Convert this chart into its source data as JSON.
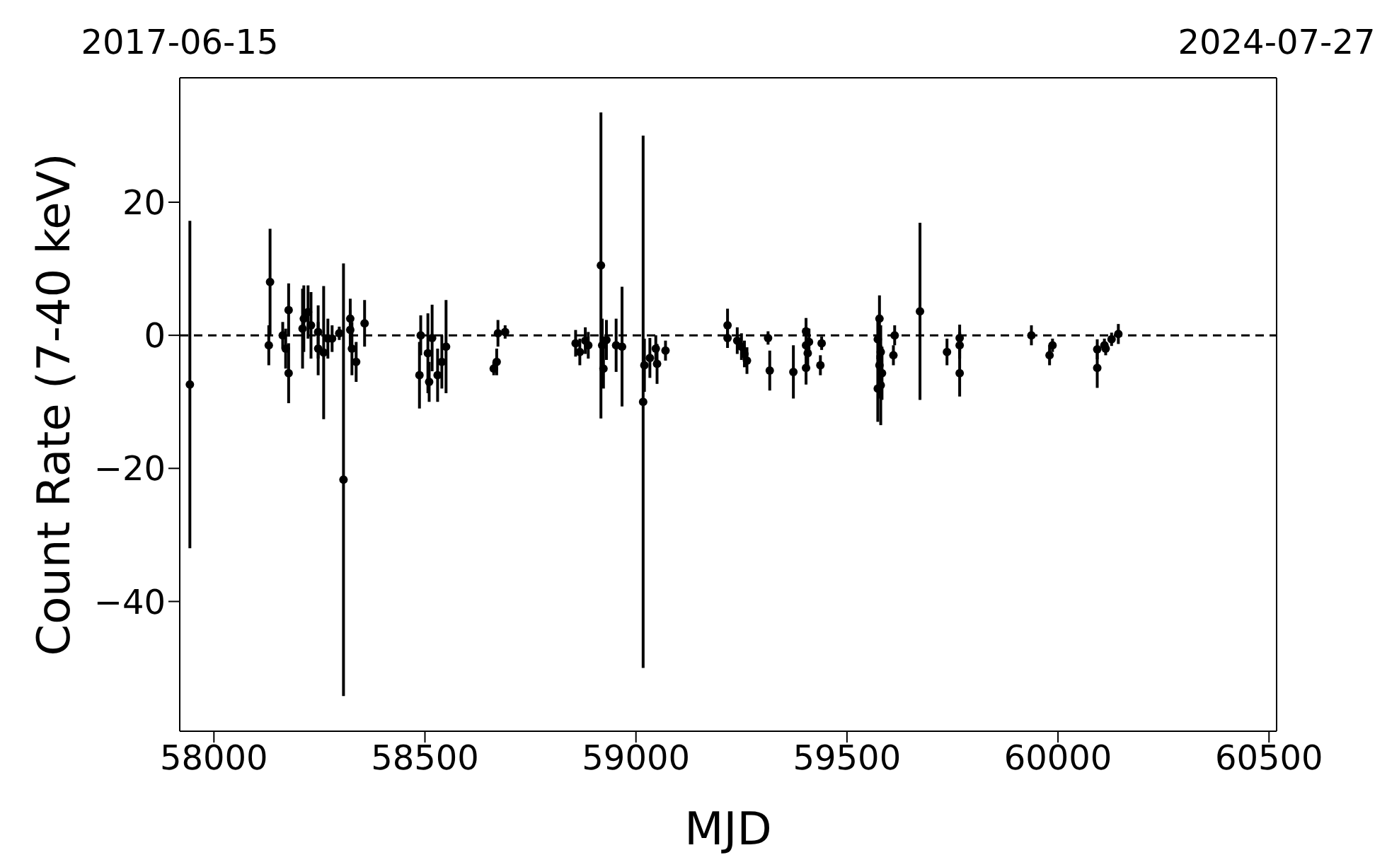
{
  "chart_data": {
    "type": "scatter",
    "xlabel": "MJD",
    "ylabel": "Count Rate (7-40 keV)",
    "xlim": [
      57919,
      60518
    ],
    "xticks": [
      58000,
      58500,
      59000,
      59500,
      60000,
      60500
    ],
    "x2lim": [
      "2017-06-15",
      "2024-07-27"
    ],
    "x2ticks": [
      "2017-06-15",
      "2024-07-27"
    ],
    "ylim": [
      -59.5,
      38.7
    ],
    "yticks": [
      {
        "value": -40,
        "label": "−40"
      },
      {
        "value": -20,
        "label": "−20"
      },
      0,
      20
    ],
    "marker": "circle",
    "ref_lines": [
      {
        "axis": "y",
        "value": 0,
        "line_style": "dashed",
        "color": "#000000"
      }
    ],
    "series": [
      {
        "color": "#000000",
        "x": [
          57943,
          58133,
          58130,
          58163,
          58170,
          58177,
          58177,
          58210,
          58213,
          58223,
          58230,
          58247,
          58247,
          58260,
          58270,
          58280,
          58297,
          58307,
          58323,
          58323,
          58327,
          58337,
          58357,
          58487,
          58490,
          58507,
          58510,
          58517,
          58530,
          58540,
          58550,
          58663,
          58670,
          58673,
          58690,
          58857,
          58867,
          58880,
          58887,
          58917,
          58920,
          58923,
          58930,
          58953,
          58967,
          59017,
          59020,
          59033,
          59047,
          59050,
          59070,
          59217,
          59217,
          59240,
          59250,
          59257,
          59263,
          59313,
          59317,
          59373,
          59403,
          59403,
          59407,
          59403,
          59410,
          59440,
          59437,
          59577,
          59573,
          59577,
          59573,
          59580,
          59580,
          59583,
          59613,
          59610,
          59673,
          59737,
          59767,
          59767,
          59767,
          59937,
          59980,
          59987,
          60093,
          60093,
          60110,
          60113,
          60127,
          60143
        ],
        "values": [
          -7.4,
          8.0,
          -1.5,
          0,
          -2,
          3.8,
          -5.7,
          1,
          2.5,
          3.5,
          1.5,
          0.5,
          -2,
          -2.6,
          -0.5,
          -0.5,
          0.3,
          -21.7,
          0.8,
          2.5,
          -2,
          -4,
          1.8,
          -6,
          0,
          -2.7,
          -7,
          -0.4,
          -6,
          -4,
          -1.7,
          -5,
          -4,
          0.3,
          0.5,
          -1.2,
          -2.5,
          -0.8,
          -1.5,
          10.5,
          -1.5,
          -5,
          -0.7,
          -1.5,
          -1.7,
          -10,
          -4.5,
          -3.4,
          -2,
          -4.3,
          -2.3,
          1.5,
          -0.4,
          -0.8,
          -1.7,
          -2.8,
          -3.8,
          -0.4,
          -5.3,
          -5.5,
          0.6,
          -1.5,
          -2.7,
          -4.9,
          -1,
          -1.2,
          -4.5,
          2.5,
          -0.6,
          -4.5,
          -8,
          -7.5,
          -2.5,
          -5.7,
          0,
          -3,
          3.6,
          -2.5,
          -0.4,
          -1.5,
          -5.7,
          0,
          -3,
          -1.5,
          -4.9,
          -2.1,
          -1.5,
          -2,
          -0.6,
          0.2
        ],
        "errors": [
          24.6,
          8,
          3,
          2,
          3,
          4,
          4.5,
          6,
          5,
          4,
          5,
          4,
          4,
          10,
          3,
          2,
          1,
          32.5,
          3,
          3,
          4,
          3,
          3.5,
          5,
          3,
          6,
          3,
          5,
          4,
          4,
          7,
          1,
          2,
          2,
          1,
          2,
          2,
          2,
          2,
          23,
          4,
          3,
          3,
          4,
          9,
          40,
          4,
          3,
          2,
          3,
          1.5,
          2.5,
          1.5,
          2,
          2,
          2,
          2,
          1,
          3,
          4,
          2,
          2,
          2,
          2.5,
          2,
          1,
          1.5,
          3.5,
          3,
          5,
          5,
          6,
          4,
          4,
          1.5,
          1.5,
          13.3,
          2,
          2,
          2,
          3.5,
          1.5,
          1.5,
          1,
          3,
          1.5,
          1,
          1,
          1,
          1.5
        ]
      }
    ]
  }
}
